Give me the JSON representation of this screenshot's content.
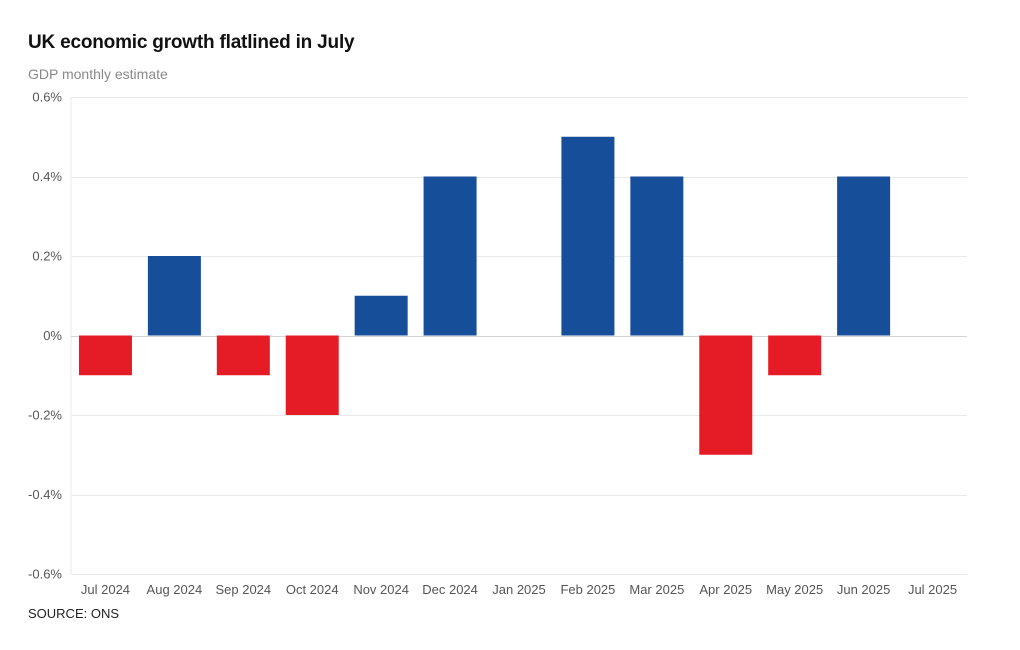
{
  "title": "UK economic growth flatlined in July",
  "subtitle": "GDP monthly estimate",
  "source": "SOURCE: ONS",
  "colors": {
    "positive": "#174e9a",
    "negative": "#e51c26",
    "grid": "#e9e9e9",
    "zero_line": "#d4d4d4"
  },
  "chart_data": {
    "type": "bar",
    "title": "UK economic growth flatlined in July",
    "subtitle": "GDP monthly estimate",
    "xlabel": "",
    "ylabel": "",
    "unit": "%",
    "ylim": [
      -0.6,
      0.6
    ],
    "y_ticks": [
      0.6,
      0.4,
      0.2,
      0,
      -0.2,
      -0.4,
      -0.6
    ],
    "y_tick_labels": [
      "0.6%",
      "0.4%",
      "0.2%",
      "0%",
      "-0.2%",
      "-0.4%",
      "-0.6%"
    ],
    "grid": true,
    "categories": [
      "Jul 2024",
      "Aug 2024",
      "Sep 2024",
      "Oct 2024",
      "Nov 2024",
      "Dec 2024",
      "Jan 2025",
      "Feb 2025",
      "Mar 2025",
      "Apr 2025",
      "May 2025",
      "Jun 2025",
      "Jul 2025"
    ],
    "values": [
      -0.1,
      0.2,
      -0.1,
      -0.2,
      0.1,
      0.4,
      0,
      0.5,
      0.4,
      -0.3,
      -0.1,
      0.4,
      0
    ]
  }
}
